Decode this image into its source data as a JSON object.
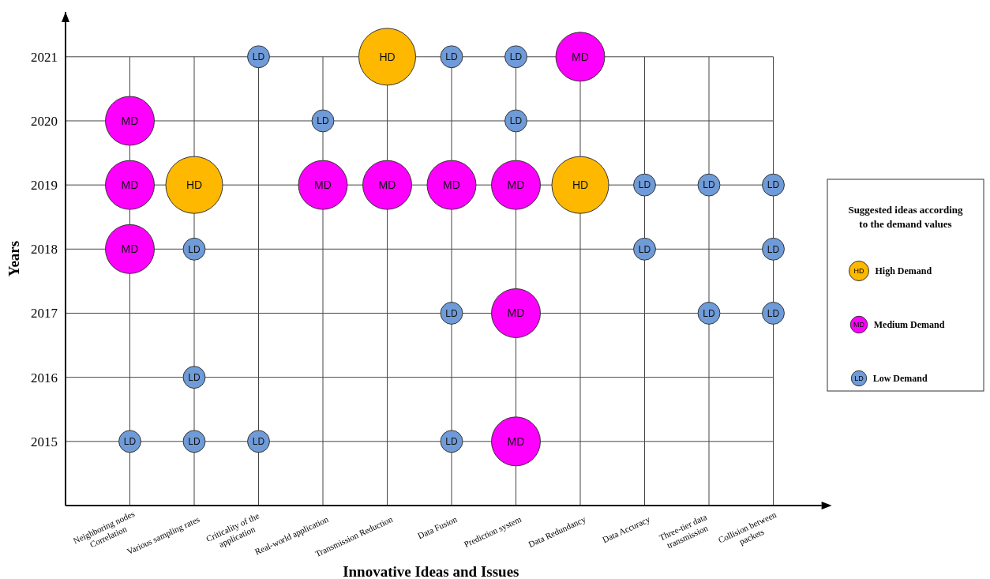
{
  "chart_data": {
    "type": "bubble",
    "xlabel": "Innovative Ideas and Issues",
    "ylabel": "Years",
    "legend_title": "Suggested ideas according\nto the demand values",
    "legend": "right",
    "grid": true,
    "categories": [
      "Neighboring nodes\nCorrelation",
      "Various sampling rates",
      "Criticality of the\napplication",
      "Real-world application",
      "Transmission Reduction",
      "Data Fusion",
      "Prediction system",
      "Data Redundancy",
      "Data Accuracy",
      "Three-tier data\ntransmission",
      "Collision between\npackets"
    ],
    "ylim": [
      2014,
      2021.7
    ],
    "yticks": [
      2015,
      2016,
      2017,
      2018,
      2019,
      2020,
      2021
    ],
    "series": [
      {
        "name": "High Demand",
        "color": "#ffb800",
        "x": [
          "Transmission Reduction",
          "Various sampling rates",
          "Data Redundancy"
        ],
        "values": [
          2021,
          2019,
          2019
        ],
        "sizes": [
          1,
          1,
          1
        ],
        "value_labels": [
          "HD",
          "HD",
          "HD"
        ]
      },
      {
        "name": "Medium Demand",
        "color": "#ff00ff",
        "x": [
          "Neighboring nodes\nCorrelation",
          "Neighboring nodes\nCorrelation",
          "Neighboring nodes\nCorrelation",
          "Real-world application",
          "Transmission Reduction",
          "Data Fusion",
          "Prediction system",
          "Prediction system",
          "Prediction system",
          "Data Redundancy"
        ],
        "values": [
          2020,
          2019,
          2018,
          2019,
          2019,
          2019,
          2019,
          2017,
          2015,
          2021
        ],
        "sizes": [
          0.74,
          0.74,
          0.74,
          0.74,
          0.74,
          0.74,
          0.74,
          0.74,
          0.74,
          0.74
        ],
        "value_labels": [
          "MD",
          "MD",
          "MD",
          "MD",
          "MD",
          "MD",
          "MD",
          "MD",
          "MD",
          "MD"
        ]
      },
      {
        "name": "Low Demand",
        "color": "#6f9bd8",
        "x": [
          "Neighboring nodes\nCorrelation",
          "Various sampling rates",
          "Various sampling rates",
          "Various sampling rates",
          "Criticality of the\napplication",
          "Criticality of the\napplication",
          "Real-world application",
          "Data Fusion",
          "Data Fusion",
          "Data Fusion",
          "Prediction system",
          "Prediction system",
          "Data Accuracy",
          "Data Accuracy",
          "Three-tier data\ntransmission",
          "Three-tier data\ntransmission",
          "Collision between\npackets",
          "Collision between\npackets",
          "Collision between\npackets"
        ],
        "values": [
          2015,
          2018,
          2016,
          2015,
          2021,
          2015,
          2020,
          2021,
          2017,
          2015,
          2021,
          2020,
          2019,
          2018,
          2019,
          2017,
          2019,
          2018,
          2017
        ],
        "sizes": [
          0.15,
          0.15,
          0.15,
          0.15,
          0.15,
          0.15,
          0.15,
          0.15,
          0.15,
          0.15,
          0.15,
          0.15,
          0.15,
          0.15,
          0.15,
          0.15,
          0.15,
          0.15,
          0.15
        ],
        "value_labels": [
          "LD",
          "LD",
          "LD",
          "LD",
          "LD",
          "LD",
          "LD",
          "LD",
          "LD",
          "LD",
          "LD",
          "LD",
          "LD",
          "LD",
          "LD",
          "LD",
          "LD",
          "LD",
          "LD"
        ]
      }
    ]
  }
}
